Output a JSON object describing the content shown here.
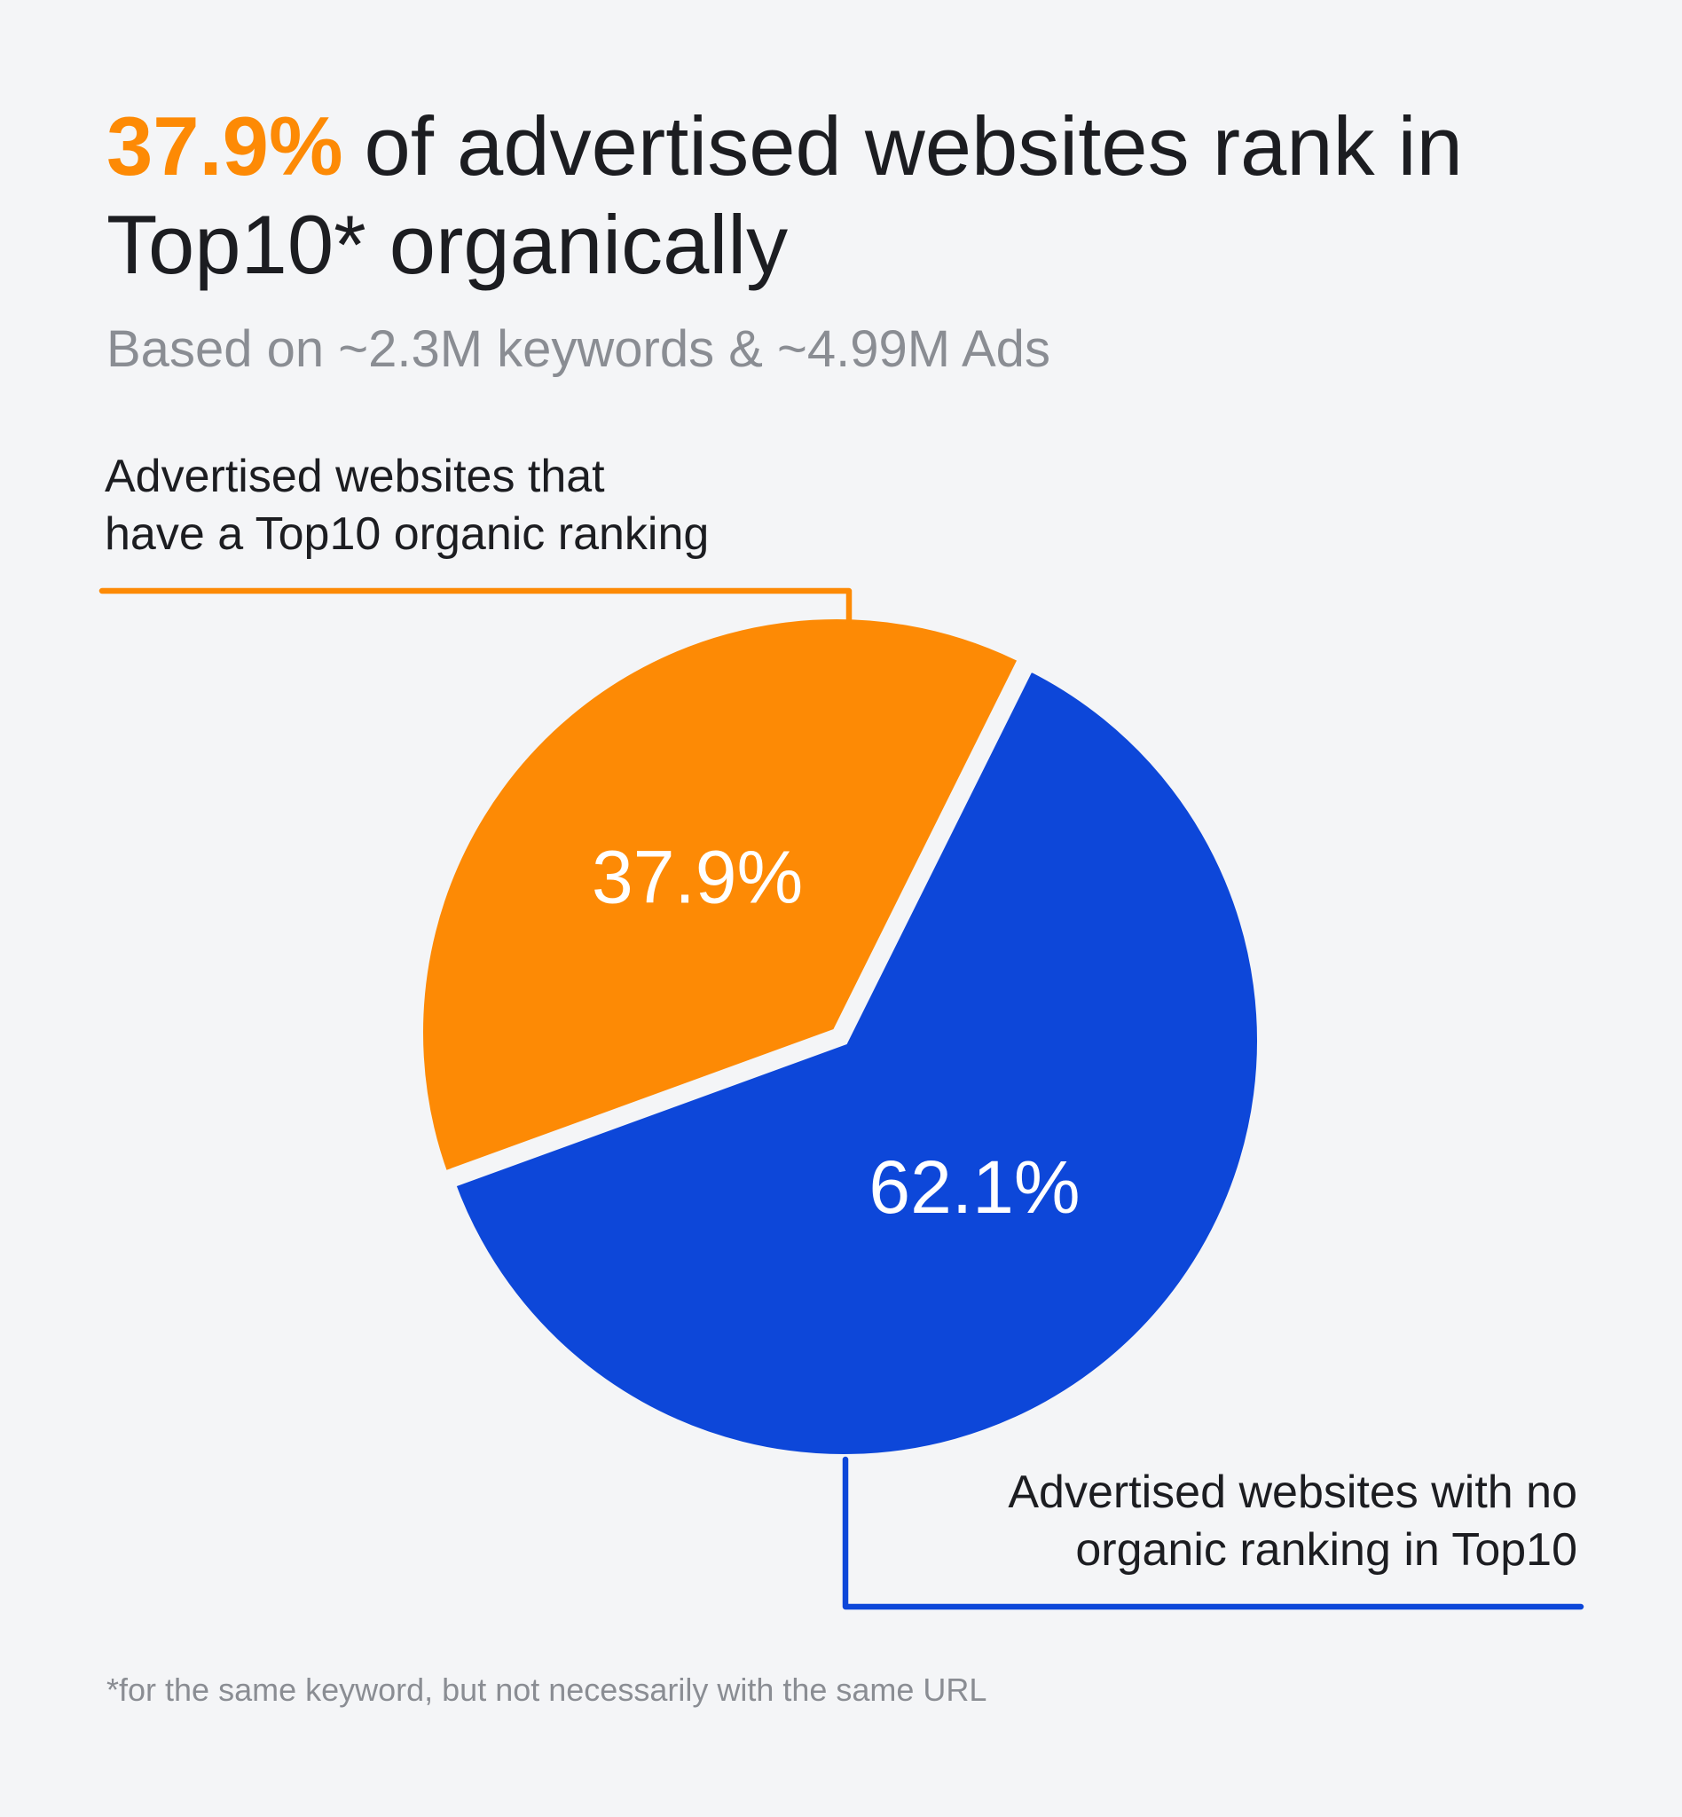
{
  "chart_data": {
    "type": "pie",
    "title_highlight": "37.9%",
    "title": "of advertised websites rank in\nTop10* organically",
    "subtitle": "Based on ~2.3M keywords & ~4.99M Ads",
    "categories": [
      "Advertised websites that\nhave a Top10 organic ranking",
      "Advertised websites with no\norganic ranking in Top10"
    ],
    "values": [
      37.9,
      62.1
    ],
    "value_labels": [
      "37.9%",
      "62.1%"
    ],
    "colors": [
      "#fd8a05",
      "#0d47d9"
    ],
    "footnote": "*for the same keyword, but not necessarily with the same URL"
  }
}
